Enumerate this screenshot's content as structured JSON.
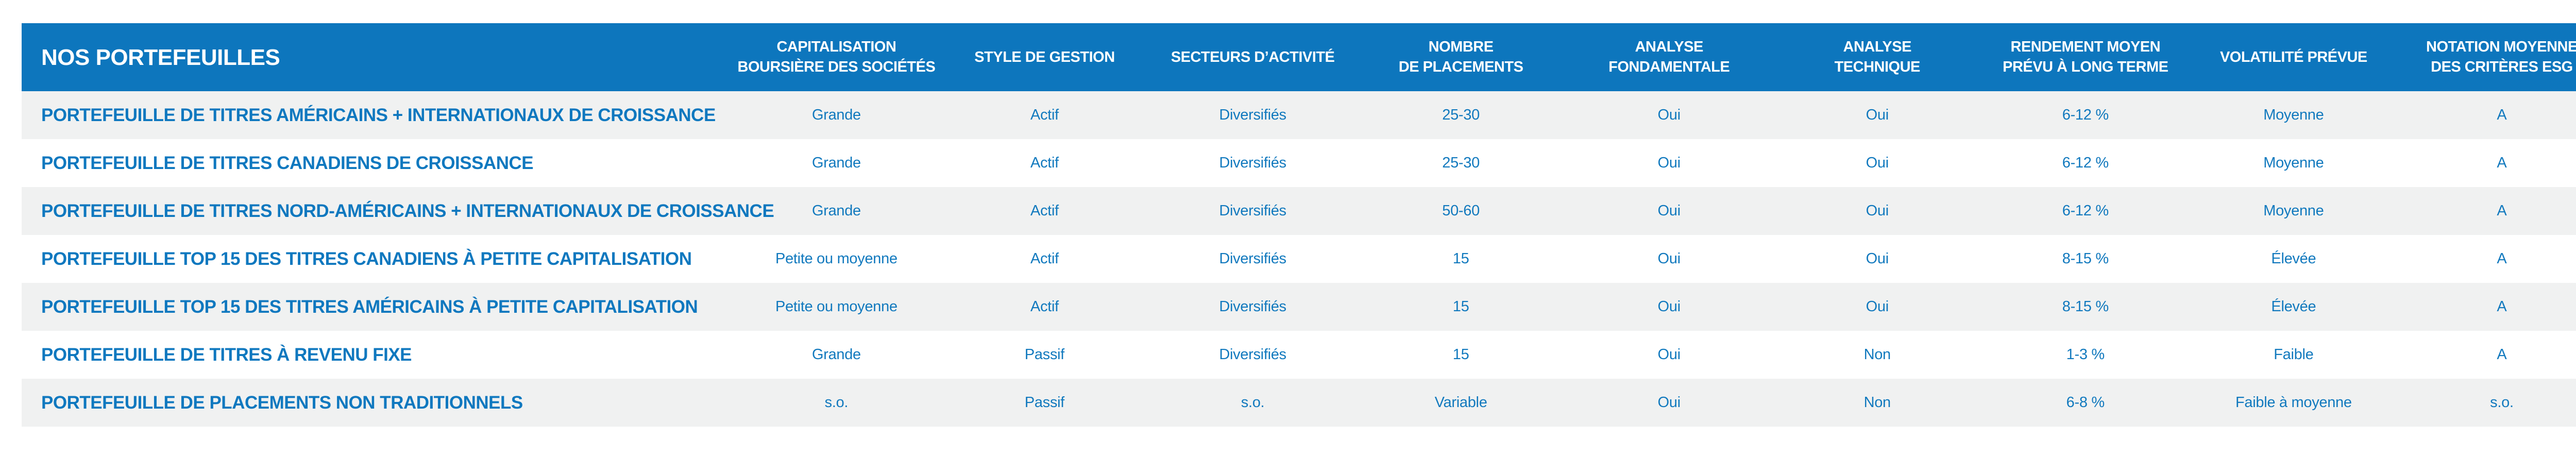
{
  "colors": {
    "header_bg": "#0d76bd",
    "header_text": "#ffffff",
    "cell_text": "#1179be",
    "row_stripe_bg": "#f0f1f1",
    "row_bg": "#ffffff"
  },
  "table": {
    "title": "NOS PORTEFEUILLES",
    "columns": [
      {
        "label": "CAPITALISATION\nBOURSIÈRE DES SOCIÉTÉS"
      },
      {
        "label": "STYLE DE GESTION"
      },
      {
        "label": "SECTEURS D’ACTIVITÉ"
      },
      {
        "label": "NOMBRE\nDE PLACEMENTS"
      },
      {
        "label": "ANALYSE\nFONDAMENTALE"
      },
      {
        "label": "ANALYSE\nTECHNIQUE"
      },
      {
        "label": "RENDEMENT MOYEN\nPRÉVU À LONG TERME"
      },
      {
        "label": "VOLATILITÉ PRÉVUE"
      },
      {
        "label": "NOTATION MOYENNE\nDES CRITÈRES ESG"
      }
    ],
    "rows": [
      {
        "name": "PORTEFEUILLE DE TITRES AMÉRICAINS + INTERNATIONAUX DE CROISSANCE",
        "cells": [
          "Grande",
          "Actif",
          "Diversifiés",
          "25-30",
          "Oui",
          "Oui",
          "6-12 %",
          "Moyenne",
          "A"
        ]
      },
      {
        "name": "PORTEFEUILLE DE TITRES CANADIENS DE CROISSANCE",
        "cells": [
          "Grande",
          "Actif",
          "Diversifiés",
          "25-30",
          "Oui",
          "Oui",
          "6-12 %",
          "Moyenne",
          "A"
        ]
      },
      {
        "name": "PORTEFEUILLE DE TITRES NORD-AMÉRICAINS + INTERNATIONAUX DE CROISSANCE",
        "cells": [
          "Grande",
          "Actif",
          "Diversifiés",
          "50-60",
          "Oui",
          "Oui",
          "6-12 %",
          "Moyenne",
          "A"
        ]
      },
      {
        "name": "PORTEFEUILLE TOP 15 DES TITRES CANADIENS À PETITE CAPITALISATION",
        "cells": [
          "Petite ou moyenne",
          "Actif",
          "Diversifiés",
          "15",
          "Oui",
          "Oui",
          "8-15 %",
          "Élevée",
          "A"
        ]
      },
      {
        "name": "PORTEFEUILLE TOP 15 DES TITRES AMÉRICAINS À PETITE CAPITALISATION",
        "cells": [
          "Petite ou moyenne",
          "Actif",
          "Diversifiés",
          "15",
          "Oui",
          "Oui",
          "8-15 %",
          "Élevée",
          "A"
        ]
      },
      {
        "name": "PORTEFEUILLE DE TITRES À REVENU FIXE",
        "cells": [
          "Grande",
          "Passif",
          "Diversifiés",
          "15",
          "Oui",
          "Non",
          "1-3 %",
          "Faible",
          "A"
        ]
      },
      {
        "name": "PORTEFEUILLE DE PLACEMENTS NON TRADITIONNELS",
        "cells": [
          "s.o.",
          "Passif",
          "s.o.",
          "Variable",
          "Oui",
          "Non",
          "6-8 %",
          "Faible à moyenne",
          "s.o."
        ]
      }
    ]
  },
  "chart_data": {
    "type": "table",
    "title": "NOS PORTEFEUILLES",
    "columns": [
      "NOS PORTEFEUILLES",
      "CAPITALISATION BOURSIÈRE DES SOCIÉTÉS",
      "STYLE DE GESTION",
      "SECTEURS D’ACTIVITÉ",
      "NOMBRE DE PLACEMENTS",
      "ANALYSE FONDAMENTALE",
      "ANALYSE TECHNIQUE",
      "RENDEMENT MOYEN PRÉVU À LONG TERME",
      "VOLATILITÉ PRÉVUE",
      "NOTATION MOYENNE DES CRITÈRES ESG"
    ],
    "rows": [
      [
        "PORTEFEUILLE DE TITRES AMÉRICAINS + INTERNATIONAUX DE CROISSANCE",
        "Grande",
        "Actif",
        "Diversifiés",
        "25-30",
        "Oui",
        "Oui",
        "6-12 %",
        "Moyenne",
        "A"
      ],
      [
        "PORTEFEUILLE DE TITRES CANADIENS DE CROISSANCE",
        "Grande",
        "Actif",
        "Diversifiés",
        "25-30",
        "Oui",
        "Oui",
        "6-12 %",
        "Moyenne",
        "A"
      ],
      [
        "PORTEFEUILLE DE TITRES NORD-AMÉRICAINS + INTERNATIONAUX DE CROISSANCE",
        "Grande",
        "Actif",
        "Diversifiés",
        "50-60",
        "Oui",
        "Oui",
        "6-12 %",
        "Moyenne",
        "A"
      ],
      [
        "PORTEFEUILLE TOP 15 DES TITRES CANADIENS À PETITE CAPITALISATION",
        "Petite ou moyenne",
        "Actif",
        "Diversifiés",
        "15",
        "Oui",
        "Oui",
        "8-15 %",
        "Élevée",
        "A"
      ],
      [
        "PORTEFEUILLE TOP 15 DES TITRES AMÉRICAINS À PETITE CAPITALISATION",
        "Petite ou moyenne",
        "Actif",
        "Diversifiés",
        "15",
        "Oui",
        "Oui",
        "8-15 %",
        "Élevée",
        "A"
      ],
      [
        "PORTEFEUILLE DE TITRES À REVENU FIXE",
        "Grande",
        "Passif",
        "Diversifiés",
        "15",
        "Oui",
        "Non",
        "1-3 %",
        "Faible",
        "A"
      ],
      [
        "PORTEFEUILLE DE PLACEMENTS NON TRADITIONNELS",
        "s.o.",
        "Passif",
        "s.o.",
        "Variable",
        "Oui",
        "Non",
        "6-8 %",
        "Faible à moyenne",
        "s.o."
      ]
    ]
  }
}
